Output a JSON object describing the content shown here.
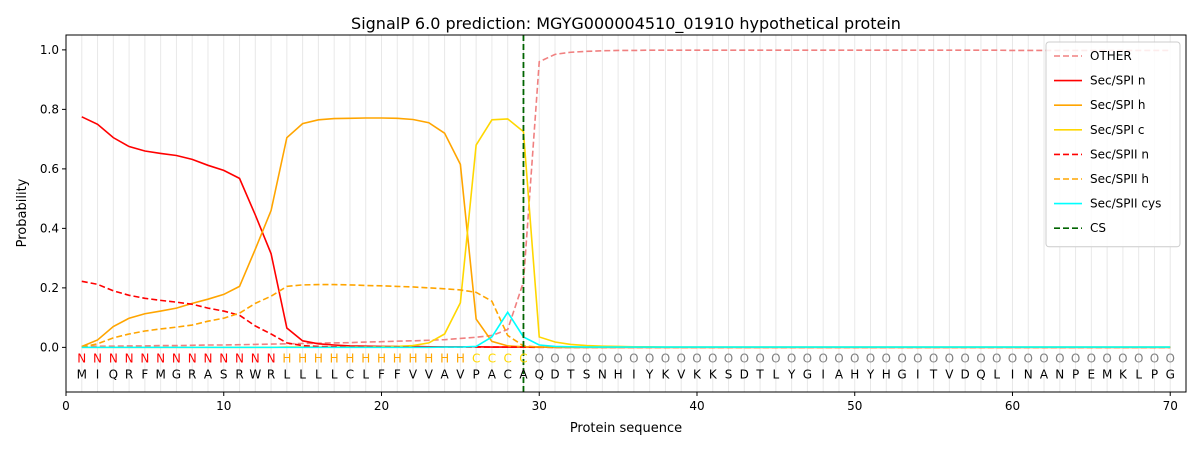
{
  "chart_data": {
    "type": "line",
    "title": "SignalP 6.0 prediction: MGYG000004510_01910 hypothetical protein",
    "xlabel": "Protein sequence",
    "ylabel": "Probability",
    "xlim": [
      0,
      71
    ],
    "ylim": [
      -0.15,
      1.05
    ],
    "xticks": [
      0,
      10,
      20,
      30,
      40,
      50,
      60,
      70
    ],
    "yticks": [
      0.0,
      0.2,
      0.4,
      0.6,
      0.8,
      1.0
    ],
    "grid": "vertical lines at each residue",
    "legend_position": "top-right",
    "sequence": [
      "M",
      "I",
      "Q",
      "R",
      "F",
      "M",
      "G",
      "R",
      "A",
      "S",
      "R",
      "W",
      "R",
      "L",
      "L",
      "L",
      "L",
      "C",
      "L",
      "F",
      "F",
      "V",
      "V",
      "A",
      "V",
      "P",
      "A",
      "C",
      "A",
      "Q",
      "D",
      "T",
      "S",
      "N",
      "H",
      "I",
      "Y",
      "K",
      "V",
      "K",
      "K",
      "S",
      "D",
      "T",
      "L",
      "Y",
      "G",
      "I",
      "A",
      "H",
      "Y",
      "H",
      "G",
      "I",
      "T",
      "V",
      "D",
      "Q",
      "L",
      "I",
      "N",
      "A",
      "N",
      "P",
      "E",
      "M",
      "K",
      "L",
      "P",
      "G"
    ],
    "region_labels": [
      "N",
      "N",
      "N",
      "N",
      "N",
      "N",
      "N",
      "N",
      "N",
      "N",
      "N",
      "N",
      "N",
      "H",
      "H",
      "H",
      "H",
      "H",
      "H",
      "H",
      "H",
      "H",
      "H",
      "H",
      "H",
      "C",
      "C",
      "C",
      "C",
      "O",
      "O",
      "O",
      "O",
      "O",
      "O",
      "O",
      "O",
      "O",
      "O",
      "O",
      "O",
      "O",
      "O",
      "O",
      "O",
      "O",
      "O",
      "O",
      "O",
      "O",
      "O",
      "O",
      "O",
      "O",
      "O",
      "O",
      "O",
      "O",
      "O",
      "O",
      "O",
      "O",
      "O",
      "O",
      "O",
      "O",
      "O",
      "O",
      "O",
      "O"
    ],
    "region_colors": {
      "N": "#ff0000",
      "H": "#ffa500",
      "C": "#ffd700",
      "O": "#808080"
    },
    "cleavage_site": 29,
    "series": [
      {
        "name": "OTHER",
        "color": "#f08080",
        "dash": "dashed",
        "values": [
          0.003,
          0.004,
          0.004,
          0.005,
          0.005,
          0.006,
          0.006,
          0.007,
          0.008,
          0.008,
          0.009,
          0.01,
          0.011,
          0.012,
          0.013,
          0.014,
          0.015,
          0.016,
          0.018,
          0.019,
          0.021,
          0.022,
          0.024,
          0.026,
          0.03,
          0.034,
          0.04,
          0.06,
          0.22,
          0.96,
          0.985,
          0.992,
          0.995,
          0.997,
          0.998,
          0.998,
          0.999,
          0.999,
          0.999,
          0.999,
          0.999,
          0.999,
          0.999,
          0.999,
          0.999,
          0.999,
          0.999,
          0.999,
          0.999,
          0.999,
          0.999,
          0.999,
          0.999,
          0.999,
          0.999,
          0.999,
          0.999,
          0.999,
          0.999,
          0.998,
          0.998,
          0.998,
          0.998,
          0.998,
          0.998,
          0.998,
          0.998,
          0.998,
          0.998,
          0.998
        ]
      },
      {
        "name": "Sec/SPI n",
        "color": "#ff0000",
        "dash": "solid",
        "values": [
          0.775,
          0.75,
          0.705,
          0.675,
          0.66,
          0.652,
          0.645,
          0.632,
          0.612,
          0.595,
          0.568,
          0.445,
          0.315,
          0.065,
          0.022,
          0.012,
          0.008,
          0.005,
          0.004,
          0.003,
          0.003,
          0.003,
          0.002,
          0.002,
          0.002,
          0.002,
          0.001,
          0.001,
          0.001,
          0.001,
          0.0,
          0.0,
          0.0,
          0.0,
          0.0,
          0.0,
          0.0,
          0.0,
          0.0,
          0.0,
          0.0,
          0.0,
          0.0,
          0.0,
          0.0,
          0.0,
          0.0,
          0.0,
          0.0,
          0.0,
          0.0,
          0.0,
          0.0,
          0.0,
          0.0,
          0.0,
          0.0,
          0.0,
          0.0,
          0.0,
          0.0,
          0.0,
          0.0,
          0.0,
          0.0,
          0.0,
          0.0,
          0.0,
          0.0,
          0.0
        ]
      },
      {
        "name": "Sec/SPI h",
        "color": "#ffa500",
        "dash": "solid",
        "values": [
          0.003,
          0.025,
          0.07,
          0.098,
          0.113,
          0.122,
          0.132,
          0.148,
          0.162,
          0.178,
          0.205,
          0.33,
          0.46,
          0.705,
          0.752,
          0.765,
          0.769,
          0.77,
          0.771,
          0.771,
          0.77,
          0.766,
          0.755,
          0.72,
          0.615,
          0.095,
          0.02,
          0.005,
          0.002,
          0.001,
          0.0,
          0.0,
          0.0,
          0.0,
          0.0,
          0.0,
          0.0,
          0.0,
          0.0,
          0.0,
          0.0,
          0.0,
          0.0,
          0.0,
          0.0,
          0.0,
          0.0,
          0.0,
          0.0,
          0.0,
          0.0,
          0.0,
          0.0,
          0.0,
          0.0,
          0.0,
          0.0,
          0.0,
          0.0,
          0.0,
          0.0,
          0.0,
          0.0,
          0.0,
          0.0,
          0.0,
          0.0,
          0.0,
          0.0,
          0.0
        ]
      },
      {
        "name": "Sec/SPI c",
        "color": "#ffd700",
        "dash": "solid",
        "values": [
          0.0,
          0.0,
          0.0,
          0.0,
          0.0,
          0.0,
          0.0,
          0.0,
          0.0,
          0.0,
          0.0,
          0.0,
          0.0,
          0.001,
          0.001,
          0.001,
          0.001,
          0.001,
          0.001,
          0.002,
          0.003,
          0.006,
          0.015,
          0.045,
          0.15,
          0.68,
          0.765,
          0.768,
          0.725,
          0.035,
          0.018,
          0.01,
          0.006,
          0.004,
          0.003,
          0.002,
          0.002,
          0.001,
          0.001,
          0.001,
          0.001,
          0.001,
          0.001,
          0.001,
          0.001,
          0.001,
          0.001,
          0.001,
          0.001,
          0.001,
          0.001,
          0.001,
          0.001,
          0.001,
          0.001,
          0.001,
          0.001,
          0.001,
          0.001,
          0.001,
          0.001,
          0.001,
          0.001,
          0.001,
          0.001,
          0.001,
          0.001,
          0.001,
          0.001,
          0.001
        ]
      },
      {
        "name": "Sec/SPII n",
        "color": "#ff0000",
        "dash": "dashed",
        "values": [
          0.222,
          0.212,
          0.19,
          0.175,
          0.165,
          0.158,
          0.152,
          0.145,
          0.132,
          0.122,
          0.108,
          0.072,
          0.045,
          0.015,
          0.006,
          0.003,
          0.002,
          0.001,
          0.001,
          0.001,
          0.001,
          0.001,
          0.001,
          0.001,
          0.001,
          0.001,
          0.001,
          0.001,
          0.001,
          0.0,
          0.0,
          0.0,
          0.0,
          0.0,
          0.0,
          0.0,
          0.0,
          0.0,
          0.0,
          0.0,
          0.0,
          0.0,
          0.0,
          0.0,
          0.0,
          0.0,
          0.0,
          0.0,
          0.0,
          0.0,
          0.0,
          0.0,
          0.0,
          0.0,
          0.0,
          0.0,
          0.0,
          0.0,
          0.0,
          0.0,
          0.0,
          0.0,
          0.0,
          0.0,
          0.0,
          0.0,
          0.0,
          0.0,
          0.0,
          0.0
        ]
      },
      {
        "name": "Sec/SPII h",
        "color": "#ffa500",
        "dash": "dashed",
        "values": [
          0.001,
          0.012,
          0.032,
          0.045,
          0.055,
          0.062,
          0.068,
          0.075,
          0.088,
          0.098,
          0.115,
          0.148,
          0.172,
          0.205,
          0.21,
          0.211,
          0.211,
          0.21,
          0.208,
          0.207,
          0.205,
          0.203,
          0.2,
          0.197,
          0.193,
          0.185,
          0.155,
          0.04,
          0.005,
          0.001,
          0.0,
          0.0,
          0.0,
          0.0,
          0.0,
          0.0,
          0.0,
          0.0,
          0.0,
          0.0,
          0.0,
          0.0,
          0.0,
          0.0,
          0.0,
          0.0,
          0.0,
          0.0,
          0.0,
          0.0,
          0.0,
          0.0,
          0.0,
          0.0,
          0.0,
          0.0,
          0.0,
          0.0,
          0.0,
          0.0,
          0.0,
          0.0,
          0.0,
          0.0,
          0.0,
          0.0,
          0.0,
          0.0,
          0.0,
          0.0
        ]
      },
      {
        "name": "Sec/SPII cys",
        "color": "#00ffff",
        "dash": "solid",
        "values": [
          0.0,
          0.0,
          0.0,
          0.0,
          0.0,
          0.0,
          0.0,
          0.0,
          0.0,
          0.0,
          0.0,
          0.0,
          0.0,
          0.0,
          0.0,
          0.0,
          0.0,
          0.0,
          0.0,
          0.0,
          0.0,
          0.0,
          0.0,
          0.001,
          0.001,
          0.003,
          0.035,
          0.118,
          0.035,
          0.008,
          0.003,
          0.002,
          0.001,
          0.001,
          0.001,
          0.001,
          0.001,
          0.001,
          0.001,
          0.001,
          0.001,
          0.001,
          0.001,
          0.001,
          0.001,
          0.001,
          0.001,
          0.001,
          0.001,
          0.001,
          0.001,
          0.001,
          0.001,
          0.001,
          0.001,
          0.001,
          0.001,
          0.001,
          0.001,
          0.001,
          0.001,
          0.001,
          0.001,
          0.001,
          0.001,
          0.001,
          0.001,
          0.001,
          0.001,
          0.001
        ]
      }
    ],
    "cs_legend": {
      "name": "CS",
      "color": "#006400",
      "dash": "dashed"
    }
  }
}
